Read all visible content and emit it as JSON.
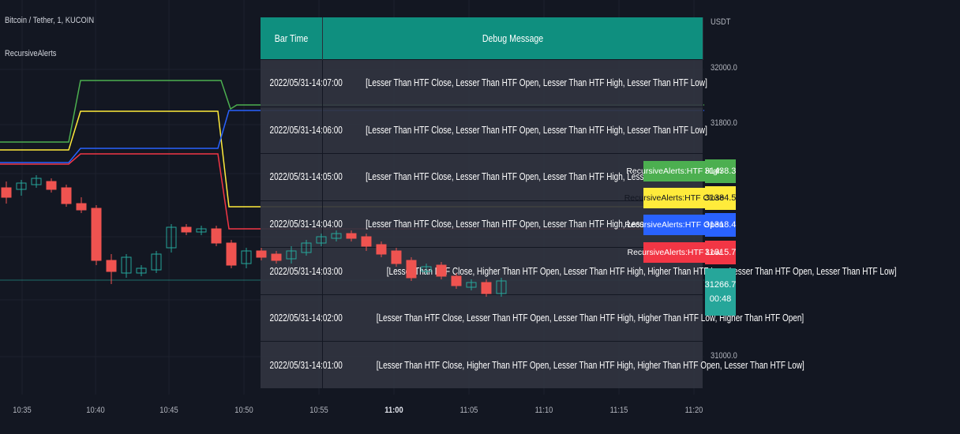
{
  "header": {
    "symbol_title": "Bitcoin / Tether, 1, KUCOIN",
    "indicator_title": "RecursiveAlerts"
  },
  "price_axis": {
    "currency": "USDT",
    "ticks": [
      "32000.0",
      "31800.0",
      "31000.0"
    ],
    "badges": [
      {
        "label": "RecursiveAlerts:HTF High",
        "value": "31438.3",
        "color": "#4caf50",
        "text_color": "#ffffff"
      },
      {
        "label": "RecursiveAlerts:HTF Close",
        "value": "31384.5",
        "color": "#ffeb3b",
        "text_color": "#131722"
      },
      {
        "label": "RecursiveAlerts:HTF Open",
        "value": "31318.4",
        "color": "#2962ff",
        "text_color": "#ffffff"
      },
      {
        "label": "RecursiveAlerts:HTF Low",
        "value": "31315.7",
        "color": "#f23645",
        "text_color": "#ffffff"
      }
    ],
    "last_price": {
      "value": "31266.7",
      "countdown": "00:48",
      "color": "#26a69a"
    }
  },
  "time_axis": {
    "ticks": [
      "10:35",
      "10:40",
      "10:45",
      "10:50",
      "10:55",
      "11:00",
      "11:05",
      "11:10",
      "11:15",
      "11:20"
    ],
    "bold_tick": "11:00"
  },
  "debug_table": {
    "headers": [
      "Bar Time",
      "Debug Message"
    ],
    "rows": [
      {
        "time": "2022/05/31-14:07:00",
        "message": "[Lesser Than HTF Close, Lesser Than HTF Open, Lesser Than HTF High, Lesser Than HTF Low]"
      },
      {
        "time": "2022/05/31-14:06:00",
        "message": "[Lesser Than HTF Close, Lesser Than HTF Open, Lesser Than HTF High, Lesser Than HTF Low]"
      },
      {
        "time": "2022/05/31-14:05:00",
        "message": "[Lesser Than HTF Close, Lesser Than HTF Open, Lesser Than HTF High, Lesser Than HTF Low]"
      },
      {
        "time": "2022/05/31-14:04:00",
        "message": "[Lesser Than HTF Close, Lesser Than HTF Open, Lesser Than HTF High, Lesser Than HTF Low]"
      },
      {
        "time": "2022/05/31-14:03:00",
        "message": "[Lesser Than HTF Close, Higher Than HTF Open, Lesser Than HTF High, Higher Than HTF Low, Lesser Than HTF Open, Lesser Than HTF Low]"
      },
      {
        "time": "2022/05/31-14:02:00",
        "message": "[Lesser Than HTF Close, Lesser Than HTF Open, Lesser Than HTF High, Higher Than HTF Low, Higher Than HTF Open]"
      },
      {
        "time": "2022/05/31-14:01:00",
        "message": "[Lesser Than HTF Close, Higher Than HTF Open, Lesser Than HTF High, Higher Than HTF Open, Lesser Than HTF Low]"
      }
    ]
  },
  "colors": {
    "background": "#131722",
    "bull": "#26a69a",
    "bear": "#ef5350",
    "htf_high": "#4caf50",
    "htf_close": "#ffeb3b",
    "htf_open": "#2962ff",
    "htf_low": "#f23645"
  }
}
